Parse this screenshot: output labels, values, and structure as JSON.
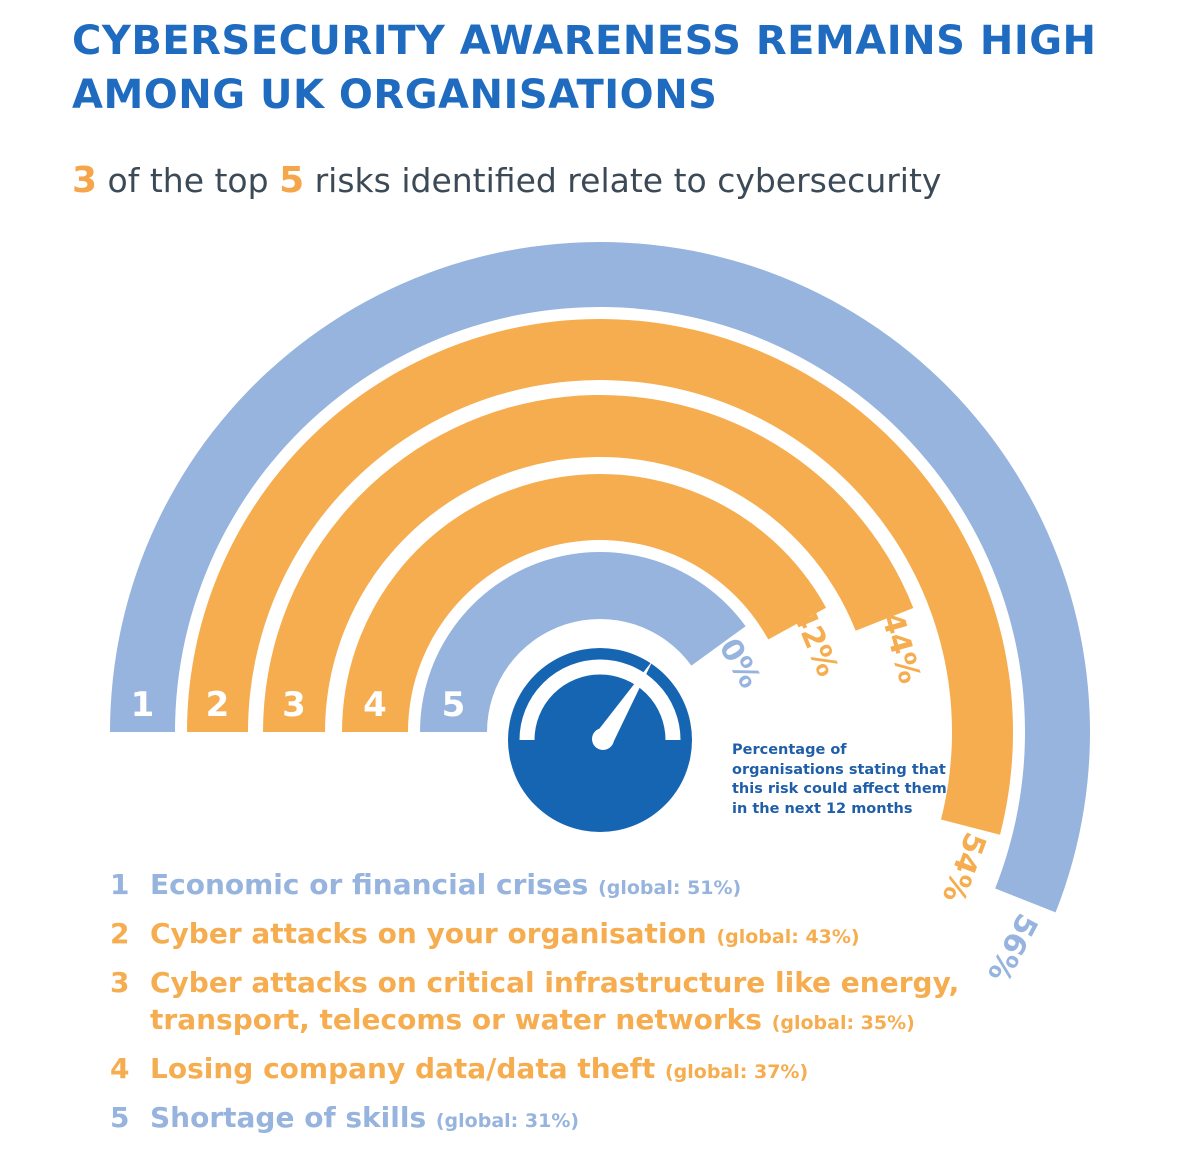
{
  "header": {
    "title_line1": "CYBERSECURITY AWARENESS REMAINS HIGH",
    "title_line2": "AMONG UK ORGANISATIONS",
    "subtitle_num1": "3",
    "subtitle_text1": " of the top ",
    "subtitle_num2": "5",
    "subtitle_text2": " risks identified relate to cybersecurity"
  },
  "colors": {
    "blue": "#97b4de",
    "orange": "#f6ad4f",
    "dark_blue": "#1665b2",
    "title_blue": "#1f6bbf"
  },
  "icon": "speedometer-icon",
  "note": "Percentage of organisations stating that this risk could affect them in the next 12 months",
  "chart_data": {
    "type": "radial-bar",
    "unit": "%",
    "categories": [
      "1",
      "2",
      "3",
      "4",
      "5"
    ],
    "values": [
      56,
      54,
      44,
      42,
      40
    ],
    "value_labels": [
      "56%",
      "54%",
      "44%",
      "42%",
      "40%"
    ],
    "series_colors": [
      "blue",
      "orange",
      "orange",
      "orange",
      "blue"
    ],
    "legend": [
      {
        "num": "1",
        "label": "Economic or financial crises",
        "global": "(global: 51%)",
        "color": "blue"
      },
      {
        "num": "2",
        "label": "Cyber attacks on your organisation",
        "global": "(global: 43%)",
        "color": "orange"
      },
      {
        "num": "3",
        "label": "Cyber attacks on critical infrastructure like energy, transport, telecoms or water networks",
        "global": "(global: 35%)",
        "color": "orange"
      },
      {
        "num": "4",
        "label": "Losing company data/data theft",
        "global": "(global: 37%)",
        "color": "orange"
      },
      {
        "num": "5",
        "label": "Shortage of skills",
        "global": "(global: 31%)",
        "color": "blue"
      }
    ]
  }
}
